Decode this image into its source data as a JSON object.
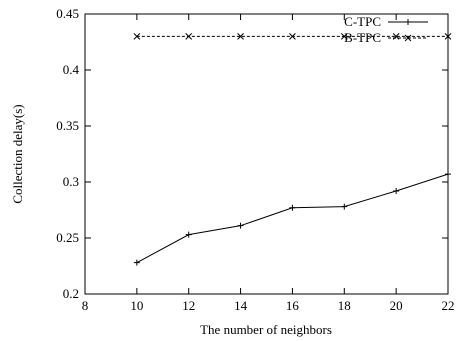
{
  "chart_data": {
    "type": "line",
    "xlabel": "The number of neighbors",
    "ylabel": "Collection delay(s)",
    "xlim": [
      8,
      22
    ],
    "ylim": [
      0.2,
      0.45
    ],
    "xticks": [
      "8",
      "10",
      "12",
      "14",
      "16",
      "18",
      "20",
      "22"
    ],
    "yticks": [
      "0.2",
      "0.25",
      "0.3",
      "0.35",
      "0.4",
      "0.45"
    ],
    "grid": false,
    "legend_position": "top-right",
    "x": [
      10,
      12,
      14,
      16,
      18,
      20,
      22
    ],
    "series": [
      {
        "name": "C-TPC",
        "values": [
          0.228,
          0.253,
          0.261,
          0.277,
          0.278,
          0.292,
          0.307
        ],
        "line_style": "solid",
        "marker": "plus",
        "color": "#000000"
      },
      {
        "name": "B-TPC",
        "values": [
          0.43,
          0.43,
          0.43,
          0.43,
          0.43,
          0.43,
          0.43
        ],
        "line_style": "dashed",
        "marker": "cross",
        "color": "#000000"
      }
    ]
  }
}
